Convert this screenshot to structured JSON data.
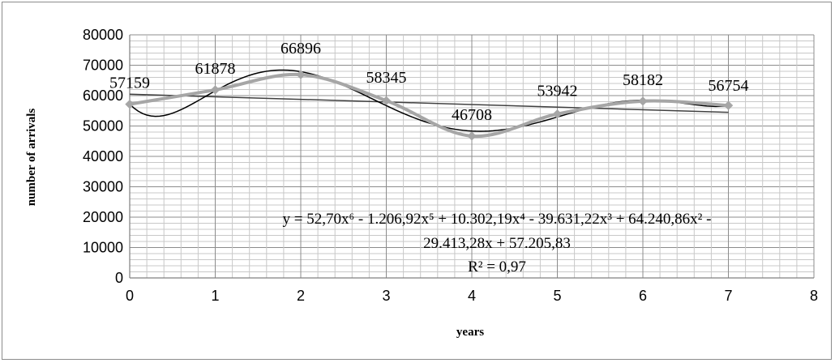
{
  "chart_data": {
    "type": "line",
    "title": "",
    "xlabel": "years",
    "ylabel": "number of arrivals",
    "xlim": [
      0,
      8
    ],
    "ylim": [
      0,
      80000
    ],
    "x_ticks": [
      "0",
      "1",
      "2",
      "3",
      "4",
      "5",
      "6",
      "7",
      "8"
    ],
    "y_ticks": [
      "0",
      "10000",
      "20000",
      "30000",
      "40000",
      "50000",
      "60000",
      "70000",
      "80000"
    ],
    "grid": true,
    "series": [
      {
        "x": [
          0,
          1,
          2,
          3,
          4,
          5,
          6,
          7
        ],
        "values": [
          57159,
          61878,
          66896,
          58345,
          46708,
          53942,
          58182,
          56754
        ],
        "data_labels": [
          "57159",
          "61878",
          "66896",
          "58345",
          "46708",
          "53942",
          "58182",
          "56754"
        ],
        "color": "#a6a6a6"
      }
    ],
    "trendlines": [
      {
        "kind": "linear",
        "color": "#404040"
      },
      {
        "kind": "polynomial",
        "color": "#000000",
        "equation_line1": "y = 52,70x⁶ - 1.206,92x⁵ + 10.302,19x⁴ - 39.631,22x³ + 64.240,86x² -",
        "equation_line2": "29.413,28x + 57.205,83",
        "r_squared": "R² = 0,97"
      }
    ]
  }
}
